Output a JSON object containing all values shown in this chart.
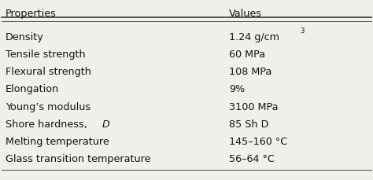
{
  "col_headers": [
    "Properties",
    "Values"
  ],
  "rows": [
    [
      "Density",
      "1.24 g/cm³"
    ],
    [
      "Tensile strength",
      "60 MPa"
    ],
    [
      "Flexural strength",
      "108 MPa"
    ],
    [
      "Elongation",
      "9%"
    ],
    [
      "Young’s modulus",
      "3100 MPa"
    ],
    [
      "Shore hardness, D",
      "85 Sh D"
    ],
    [
      "Melting temperature",
      "145–160 °C"
    ],
    [
      "Glass transition temperature",
      "56–64 °C"
    ]
  ],
  "bg_color": "#f0f0eb",
  "header_line_color": "#444444",
  "text_color": "#111111",
  "font_size": 9.2,
  "header_font_size": 9.2
}
